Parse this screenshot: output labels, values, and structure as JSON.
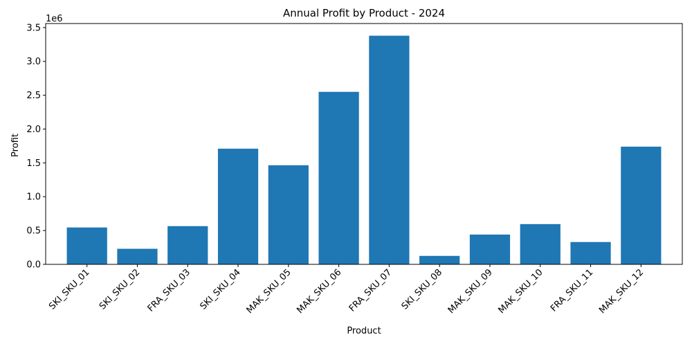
{
  "chart_data": {
    "type": "bar",
    "title": "Annual Profit by Product - 2024",
    "xlabel": "Product",
    "ylabel": "Profit",
    "y_multiplier_label": "1e6",
    "categories": [
      "SKI_SKU_01",
      "SKI_SKU_02",
      "FRA_SKU_03",
      "SKI_SKU_04",
      "MAK_SKU_05",
      "MAK_SKU_06",
      "FRA_SKU_07",
      "SKI_SKU_08",
      "MAK_SKU_09",
      "MAK_SKU_10",
      "FRA_SKU_11",
      "MAK_SKU_12"
    ],
    "values": [
      545000,
      230000,
      565000,
      1710000,
      1465000,
      2550000,
      3380000,
      125000,
      440000,
      595000,
      330000,
      1740000
    ],
    "ylim": [
      0,
      3560000
    ],
    "y_ticks": [
      0,
      500000,
      1000000,
      1500000,
      2000000,
      2500000,
      3000000,
      3500000
    ],
    "y_tick_labels": [
      "0.0",
      "0.5",
      "1.0",
      "1.5",
      "2.0",
      "2.5",
      "3.0",
      "3.5"
    ],
    "bar_color": "#1f77b4",
    "grid": false,
    "legend": "none"
  }
}
